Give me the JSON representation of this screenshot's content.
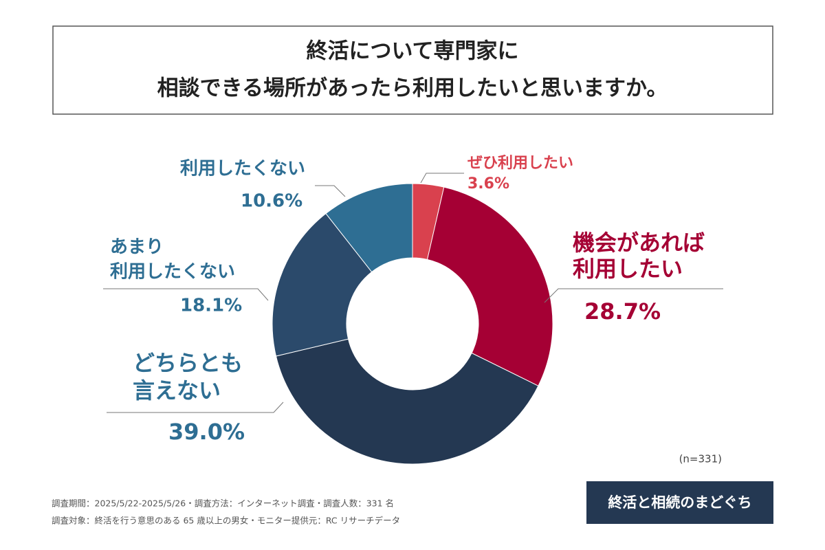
{
  "chart_data": {
    "type": "donut",
    "title": [
      "終活について専門家に",
      "相談できる場所があったら利用したいと思いますか。"
    ],
    "categories": [
      [
        "ぜひ利用したい"
      ],
      [
        "機会があれば",
        "利用したい"
      ],
      [
        "どちらとも",
        "言えない"
      ],
      [
        "あまり",
        "利用したくない"
      ],
      [
        "利用したくない"
      ]
    ],
    "values": [
      3.6,
      28.7,
      39.0,
      18.1,
      10.6
    ],
    "value_labels": [
      "3.6%",
      "28.7%",
      "39.0%",
      "18.1%",
      "10.6%"
    ],
    "colors": [
      "#d9414e",
      "#a50034",
      "#243852",
      "#2b4a6b",
      "#2e6e93"
    ],
    "label_colors": [
      "#d9414e",
      "#a50034",
      "#2e6e93",
      "#2e6e93",
      "#2e6e93"
    ],
    "note": "(n=331)",
    "footnotes": [
      "調査期間：2025/5/22-2025/5/26・調査方法：インターネット調査・調査人数：331 名",
      "調査対象：終活を行う意思のある 65 歳以上の男女・モニター提供元：RC リサーチデータ"
    ],
    "logo": "終活と相続のまどぐち"
  }
}
